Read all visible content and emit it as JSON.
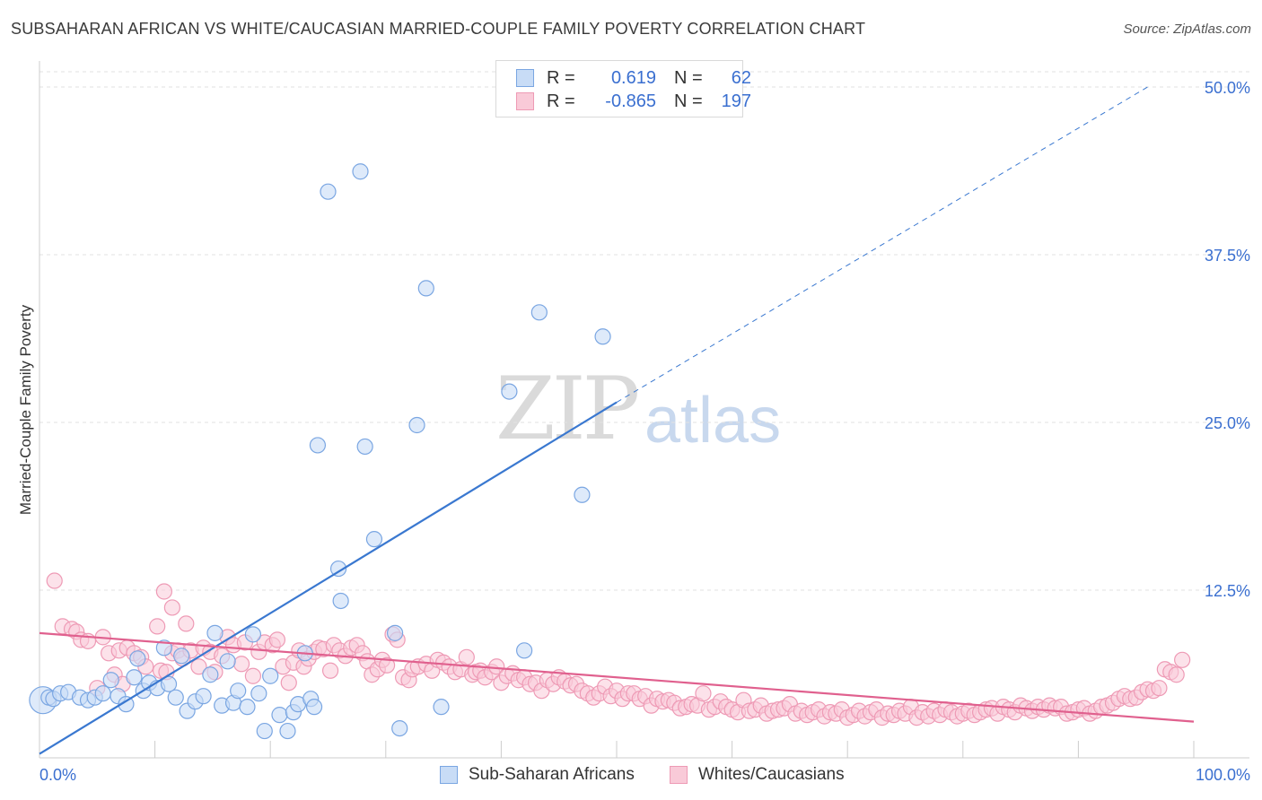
{
  "title": "SUBSAHARAN AFRICAN VS WHITE/CAUCASIAN MARRIED-COUPLE FAMILY POVERTY CORRELATION CHART",
  "source": "Source: ZipAtlas.com",
  "watermark": {
    "zip": "ZIP",
    "atlas": "atlas"
  },
  "colors": {
    "blue": "#3a78d0",
    "blue_fill": "#c8dcf6",
    "blue_edge": "#7aa6e2",
    "pink": "#e0608e",
    "pink_fill": "#f9cad8",
    "pink_edge": "#ee9ab5",
    "axis_label": "#3a6fd0"
  },
  "legend": {
    "rows": [
      {
        "r_label": "R =",
        "r_value": "0.619",
        "n_label": "N =",
        "n_value": "62"
      },
      {
        "r_label": "R =",
        "r_value": "-0.865",
        "n_label": "N =",
        "n_value": "197"
      }
    ]
  },
  "bottom_legend": {
    "series1": "Sub-Saharan Africans",
    "series2": "Whites/Caucasians"
  },
  "chart_data": {
    "type": "scatter",
    "title": "SUBSAHARAN AFRICAN VS WHITE/CAUCASIAN MARRIED-COUPLE FAMILY POVERTY CORRELATION CHART",
    "xlabel": "",
    "ylabel": "Married-Couple Family Poverty",
    "xlim": [
      0,
      100
    ],
    "ylim": [
      0,
      50
    ],
    "x_tick_labels": [
      "0.0%",
      "100.0%"
    ],
    "y_ticks": [
      12.5,
      25.0,
      37.5,
      50.0
    ],
    "y_tick_labels": [
      "12.5%",
      "25.0%",
      "37.5%",
      "50.0%"
    ],
    "legend_position": "top-center",
    "series": [
      {
        "name": "Sub-Saharan Africans",
        "trend": {
          "x": [
            0,
            50
          ],
          "y": [
            0.3,
            26.5
          ],
          "extend_to": [
            96,
            50.0
          ]
        },
        "points": [
          [
            0.3,
            4.3
          ],
          [
            0.8,
            4.5
          ],
          [
            1.2,
            4.4
          ],
          [
            1.8,
            4.8
          ],
          [
            2.5,
            4.9
          ],
          [
            3.5,
            4.5
          ],
          [
            4.2,
            4.3
          ],
          [
            4.8,
            4.5
          ],
          [
            5.5,
            4.8
          ],
          [
            6.2,
            5.8
          ],
          [
            6.8,
            4.6
          ],
          [
            7.5,
            4.0
          ],
          [
            8.2,
            6.0
          ],
          [
            8.5,
            7.4
          ],
          [
            9.0,
            5.0
          ],
          [
            9.5,
            5.6
          ],
          [
            10.2,
            5.2
          ],
          [
            10.8,
            8.2
          ],
          [
            11.2,
            5.5
          ],
          [
            11.8,
            4.5
          ],
          [
            12.3,
            7.6
          ],
          [
            12.8,
            3.5
          ],
          [
            13.5,
            4.2
          ],
          [
            14.2,
            4.6
          ],
          [
            14.8,
            6.2
          ],
          [
            15.2,
            9.3
          ],
          [
            15.8,
            3.9
          ],
          [
            16.3,
            7.2
          ],
          [
            16.8,
            4.1
          ],
          [
            17.2,
            5.0
          ],
          [
            18.0,
            3.8
          ],
          [
            18.5,
            9.2
          ],
          [
            19.0,
            4.8
          ],
          [
            19.5,
            2.0
          ],
          [
            20.0,
            6.1
          ],
          [
            20.8,
            3.2
          ],
          [
            21.5,
            2.0
          ],
          [
            22.0,
            3.4
          ],
          [
            22.4,
            4.0
          ],
          [
            23.0,
            7.8
          ],
          [
            23.5,
            4.4
          ],
          [
            23.8,
            3.8
          ],
          [
            25.0,
            42.2
          ],
          [
            27.8,
            43.7
          ],
          [
            24.1,
            23.3
          ],
          [
            28.2,
            23.2
          ],
          [
            25.9,
            14.1
          ],
          [
            26.1,
            11.7
          ],
          [
            29.0,
            16.3
          ],
          [
            30.8,
            9.3
          ],
          [
            31.2,
            2.2
          ],
          [
            32.7,
            24.8
          ],
          [
            33.5,
            35.0
          ],
          [
            34.8,
            3.8
          ],
          [
            40.7,
            27.3
          ],
          [
            42.0,
            8.0
          ],
          [
            43.3,
            33.2
          ],
          [
            47.0,
            19.6
          ],
          [
            48.8,
            31.4
          ]
        ],
        "sizes_note": "first point is large"
      },
      {
        "name": "Whites/Caucasians",
        "trend": {
          "x": [
            0,
            100
          ],
          "y": [
            9.3,
            2.7
          ]
        },
        "points": [
          [
            1.3,
            13.2
          ],
          [
            2.0,
            9.8
          ],
          [
            2.8,
            9.6
          ],
          [
            3.2,
            9.4
          ],
          [
            3.6,
            8.8
          ],
          [
            4.2,
            8.7
          ],
          [
            5.0,
            5.2
          ],
          [
            5.5,
            9.0
          ],
          [
            6.0,
            7.8
          ],
          [
            6.5,
            6.2
          ],
          [
            6.9,
            8.0
          ],
          [
            7.2,
            5.5
          ],
          [
            7.6,
            8.2
          ],
          [
            8.2,
            7.8
          ],
          [
            8.8,
            7.5
          ],
          [
            9.2,
            6.8
          ],
          [
            10.2,
            9.8
          ],
          [
            10.5,
            6.5
          ],
          [
            11.0,
            6.4
          ],
          [
            11.5,
            7.8
          ],
          [
            12.0,
            8.0
          ],
          [
            12.4,
            7.4
          ],
          [
            10.8,
            12.4
          ],
          [
            11.5,
            11.2
          ],
          [
            12.7,
            10.0
          ],
          [
            13.1,
            8.0
          ],
          [
            13.8,
            6.8
          ],
          [
            14.2,
            8.2
          ],
          [
            14.8,
            7.9
          ],
          [
            15.2,
            6.4
          ],
          [
            15.8,
            7.6
          ],
          [
            16.3,
            9.0
          ],
          [
            16.8,
            8.4
          ],
          [
            17.5,
            7.0
          ],
          [
            17.8,
            8.6
          ],
          [
            18.5,
            6.1
          ],
          [
            19.0,
            7.9
          ],
          [
            19.5,
            8.6
          ],
          [
            20.2,
            8.4
          ],
          [
            20.6,
            8.8
          ],
          [
            21.1,
            6.8
          ],
          [
            21.6,
            5.6
          ],
          [
            22.0,
            7.1
          ],
          [
            22.5,
            8.0
          ],
          [
            22.9,
            6.8
          ],
          [
            23.3,
            7.4
          ],
          [
            23.8,
            7.9
          ],
          [
            24.2,
            8.2
          ],
          [
            24.6,
            8.1
          ],
          [
            25.2,
            6.5
          ],
          [
            25.5,
            8.4
          ],
          [
            26.0,
            8.0
          ],
          [
            26.5,
            7.6
          ],
          [
            27.0,
            8.2
          ],
          [
            27.5,
            8.4
          ],
          [
            28.0,
            7.8
          ],
          [
            28.4,
            7.2
          ],
          [
            28.8,
            6.2
          ],
          [
            29.3,
            6.6
          ],
          [
            29.7,
            7.3
          ],
          [
            30.1,
            6.9
          ],
          [
            30.6,
            9.2
          ],
          [
            31.0,
            8.8
          ],
          [
            31.5,
            6.0
          ],
          [
            32.0,
            5.8
          ],
          [
            32.3,
            6.6
          ],
          [
            32.8,
            6.8
          ],
          [
            33.5,
            7.0
          ],
          [
            34.0,
            6.5
          ],
          [
            34.5,
            7.3
          ],
          [
            35.0,
            7.1
          ],
          [
            35.5,
            6.8
          ],
          [
            36.0,
            6.4
          ],
          [
            36.5,
            6.6
          ],
          [
            37.0,
            7.5
          ],
          [
            37.5,
            6.2
          ],
          [
            37.8,
            6.4
          ],
          [
            38.2,
            6.5
          ],
          [
            38.6,
            6.0
          ],
          [
            39.2,
            6.4
          ],
          [
            39.6,
            6.8
          ],
          [
            40.0,
            5.6
          ],
          [
            40.5,
            6.1
          ],
          [
            41.0,
            6.3
          ],
          [
            41.5,
            5.8
          ],
          [
            42.0,
            6.0
          ],
          [
            42.5,
            5.5
          ],
          [
            43.0,
            5.6
          ],
          [
            43.5,
            5.0
          ],
          [
            44.0,
            5.8
          ],
          [
            44.5,
            5.5
          ],
          [
            45.0,
            6.0
          ],
          [
            45.5,
            5.7
          ],
          [
            46.0,
            5.4
          ],
          [
            46.5,
            5.5
          ],
          [
            47.0,
            5.0
          ],
          [
            47.5,
            4.8
          ],
          [
            48.0,
            4.5
          ],
          [
            48.5,
            4.8
          ],
          [
            49.0,
            5.3
          ],
          [
            49.5,
            4.6
          ],
          [
            50.0,
            5.0
          ],
          [
            50.5,
            4.4
          ],
          [
            51.0,
            4.8
          ],
          [
            51.5,
            4.8
          ],
          [
            52.0,
            4.4
          ],
          [
            52.5,
            4.6
          ],
          [
            53.0,
            3.9
          ],
          [
            53.5,
            4.4
          ],
          [
            54.0,
            4.2
          ],
          [
            54.5,
            4.3
          ],
          [
            55.0,
            4.1
          ],
          [
            55.5,
            3.7
          ],
          [
            56.0,
            3.8
          ],
          [
            56.5,
            4.0
          ],
          [
            57.0,
            3.9
          ],
          [
            57.5,
            4.8
          ],
          [
            58.0,
            3.6
          ],
          [
            58.5,
            3.8
          ],
          [
            59.0,
            4.2
          ],
          [
            59.5,
            3.8
          ],
          [
            60.0,
            3.6
          ],
          [
            60.5,
            3.4
          ],
          [
            61.0,
            4.3
          ],
          [
            61.5,
            3.5
          ],
          [
            62.0,
            3.6
          ],
          [
            62.5,
            3.9
          ],
          [
            63.0,
            3.3
          ],
          [
            63.5,
            3.5
          ],
          [
            64.0,
            3.6
          ],
          [
            64.5,
            3.7
          ],
          [
            65.0,
            4.0
          ],
          [
            65.5,
            3.3
          ],
          [
            66.0,
            3.5
          ],
          [
            66.5,
            3.2
          ],
          [
            67.0,
            3.4
          ],
          [
            67.5,
            3.6
          ],
          [
            68.0,
            3.1
          ],
          [
            68.5,
            3.4
          ],
          [
            69.0,
            3.3
          ],
          [
            69.5,
            3.6
          ],
          [
            70.0,
            3.0
          ],
          [
            70.5,
            3.2
          ],
          [
            71.0,
            3.5
          ],
          [
            71.5,
            3.1
          ],
          [
            72.0,
            3.4
          ],
          [
            72.5,
            3.6
          ],
          [
            73.0,
            3.0
          ],
          [
            73.5,
            3.3
          ],
          [
            74.0,
            3.2
          ],
          [
            74.5,
            3.5
          ],
          [
            75.0,
            3.3
          ],
          [
            75.5,
            3.8
          ],
          [
            76.0,
            3.0
          ],
          [
            76.5,
            3.4
          ],
          [
            77.0,
            3.1
          ],
          [
            77.5,
            3.5
          ],
          [
            78.0,
            3.2
          ],
          [
            78.5,
            3.6
          ],
          [
            79.0,
            3.4
          ],
          [
            79.5,
            3.1
          ],
          [
            80.0,
            3.3
          ],
          [
            80.5,
            3.5
          ],
          [
            81.0,
            3.2
          ],
          [
            81.5,
            3.4
          ],
          [
            82.0,
            3.6
          ],
          [
            82.5,
            3.7
          ],
          [
            83.0,
            3.3
          ],
          [
            83.5,
            3.8
          ],
          [
            84.0,
            3.6
          ],
          [
            84.5,
            3.4
          ],
          [
            85.0,
            3.9
          ],
          [
            85.5,
            3.7
          ],
          [
            86.0,
            3.5
          ],
          [
            86.5,
            3.8
          ],
          [
            87.0,
            3.6
          ],
          [
            87.5,
            3.9
          ],
          [
            88.0,
            3.7
          ],
          [
            88.5,
            3.8
          ],
          [
            89.0,
            3.3
          ],
          [
            89.5,
            3.4
          ],
          [
            90.0,
            3.6
          ],
          [
            90.5,
            3.7
          ],
          [
            91.0,
            3.3
          ],
          [
            91.5,
            3.5
          ],
          [
            92.0,
            3.8
          ],
          [
            92.5,
            3.9
          ],
          [
            93.0,
            4.1
          ],
          [
            93.5,
            4.4
          ],
          [
            94.0,
            4.6
          ],
          [
            94.5,
            4.4
          ],
          [
            95.0,
            4.5
          ],
          [
            95.5,
            4.9
          ],
          [
            96.0,
            5.1
          ],
          [
            96.5,
            5.0
          ],
          [
            97.0,
            5.2
          ],
          [
            97.5,
            6.6
          ],
          [
            98.0,
            6.4
          ],
          [
            98.5,
            6.2
          ],
          [
            99.0,
            7.3
          ]
        ]
      }
    ]
  }
}
